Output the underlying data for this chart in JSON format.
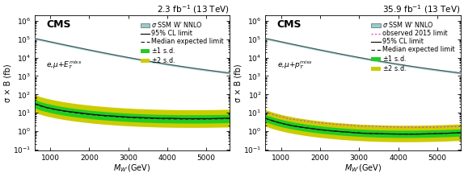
{
  "left_title": "2.3 fb$^{-1}$ (13 TeV)",
  "right_title": "35.9 fb$^{-1}$ (13 TeV)",
  "cms_label": "CMS",
  "channel_label_left": "e,μ+$E_T^{miss}$",
  "channel_label_right": "e,μ+$p_T^{miss}$",
  "xlabel": "$M_{W'}$(GeV)",
  "ylabel": "σ × B (fb)",
  "xmin": 600,
  "xmax": 5600,
  "ymin": 0.09,
  "ymax": 2000000.0,
  "ssm_color": "#99cccc",
  "ssm_line_color": "#444444",
  "obs_color": "#111111",
  "exp_color": "#111111",
  "band1_color": "#22cc22",
  "band2_color": "#cccc00",
  "obs2015_color": "#cc44cc",
  "legend_fontsize": 5.8,
  "title_fontsize": 7.5,
  "cms_fontsize": 9,
  "channel_fontsize": 6.5,
  "tick_labelsize": 6.5,
  "axis_labelsize": 7
}
